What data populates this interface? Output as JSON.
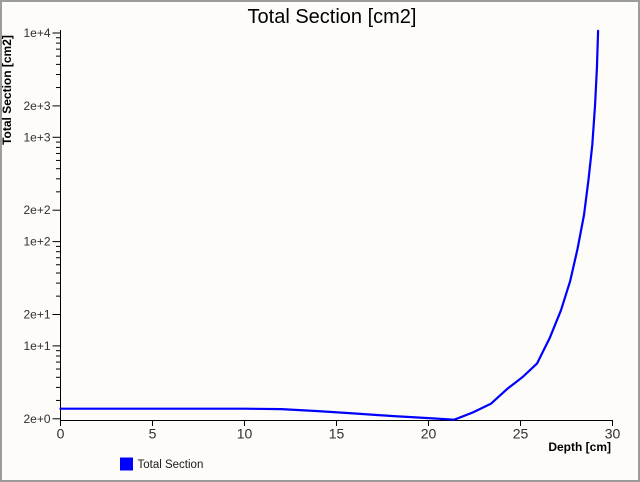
{
  "window": {
    "background_color": "#fdfcf9",
    "border_color": "#9c9c9c"
  },
  "chart_data": {
    "type": "line",
    "title": "Total Section [cm2]",
    "xlabel": "Depth [cm]",
    "ylabel": "Total Section [cm2]",
    "grid": false,
    "x_axis": {
      "scale": "linear",
      "min": 0,
      "max": 30,
      "ticks": [
        0,
        5,
        10,
        15,
        20,
        25,
        30
      ]
    },
    "y_axis": {
      "scale": "log",
      "min": 2,
      "max": 10000,
      "labeled_ticks": [
        {
          "value": 10000,
          "label": "1e+4"
        },
        {
          "value": 2000,
          "label": "2e+3"
        },
        {
          "value": 1000,
          "label": "1e+3"
        },
        {
          "value": 200,
          "label": "2e+2"
        },
        {
          "value": 100,
          "label": "1e+2"
        },
        {
          "value": 20,
          "label": "2e+1"
        },
        {
          "value": 10,
          "label": "1e+1"
        },
        {
          "value": 2,
          "label": "2e+0"
        }
      ],
      "minor_tick_multiples": [
        3,
        4,
        5,
        6,
        7,
        8,
        9
      ]
    },
    "legend": {
      "position": "bottom-left",
      "items": [
        {
          "label": "Total Section",
          "color": "#0000ff"
        }
      ]
    },
    "series": [
      {
        "name": "Total Section",
        "color": "#0000ff",
        "points": [
          [
            0,
            2.5
          ],
          [
            2,
            2.5
          ],
          [
            4,
            2.5
          ],
          [
            6,
            2.5
          ],
          [
            8,
            2.5
          ],
          [
            10,
            2.5
          ],
          [
            12,
            2.48
          ],
          [
            14,
            2.37
          ],
          [
            16,
            2.25
          ],
          [
            18,
            2.13
          ],
          [
            20,
            2.03
          ],
          [
            21.4,
            1.96
          ],
          [
            22.4,
            2.3
          ],
          [
            23.4,
            2.8
          ],
          [
            24.3,
            3.9
          ],
          [
            25.1,
            5.0
          ],
          [
            25.9,
            6.8
          ],
          [
            26.6,
            12
          ],
          [
            27.2,
            22
          ],
          [
            27.7,
            42
          ],
          [
            28.1,
            85
          ],
          [
            28.45,
            180
          ],
          [
            28.7,
            400
          ],
          [
            28.9,
            850
          ],
          [
            29.05,
            2000
          ],
          [
            29.15,
            4600
          ],
          [
            29.22,
            10500
          ]
        ]
      }
    ]
  }
}
